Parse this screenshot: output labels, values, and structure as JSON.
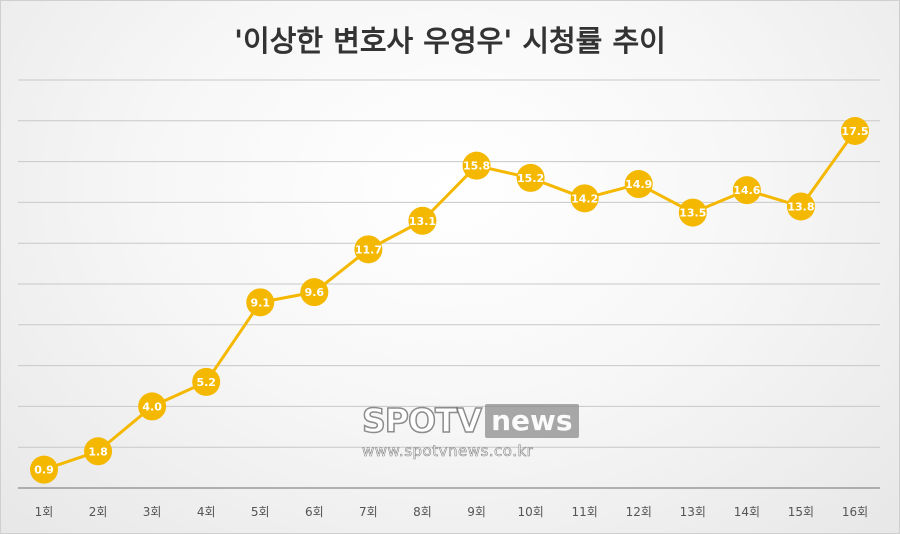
{
  "chart_data": {
    "type": "line",
    "title": "'이상한 변호사 우영우' 시청률 추이",
    "categories": [
      "1회",
      "2회",
      "3회",
      "4회",
      "5회",
      "6회",
      "7회",
      "8회",
      "9회",
      "10회",
      "11회",
      "12회",
      "13회",
      "14회",
      "15회",
      "16회"
    ],
    "values": [
      0.9,
      1.8,
      4.0,
      5.2,
      9.1,
      9.6,
      11.7,
      13.1,
      15.8,
      15.2,
      14.2,
      14.9,
      13.5,
      14.6,
      13.8,
      17.5
    ],
    "value_labels": [
      "0.9",
      "1.8",
      "4.0",
      "5.2",
      "9.1",
      "9.6",
      "11.7",
      "13.1",
      "15.8",
      "15.2",
      "14.2",
      "14.9",
      "13.5",
      "14.6",
      "13.8",
      "17.5"
    ],
    "ylim": [
      0,
      20
    ],
    "y_grid_step": 2,
    "grid": true,
    "legend": "none",
    "colors": {
      "line": "#f5b800",
      "marker": "#f5b800",
      "label": "#ffffff",
      "grid": "#c8c8c8",
      "axis": "#9a9a9a",
      "title": "#333333"
    }
  },
  "watermark": {
    "brand": "SPOTV",
    "brand_suffix": "news",
    "url": "www.spotvnews.co.kr"
  }
}
